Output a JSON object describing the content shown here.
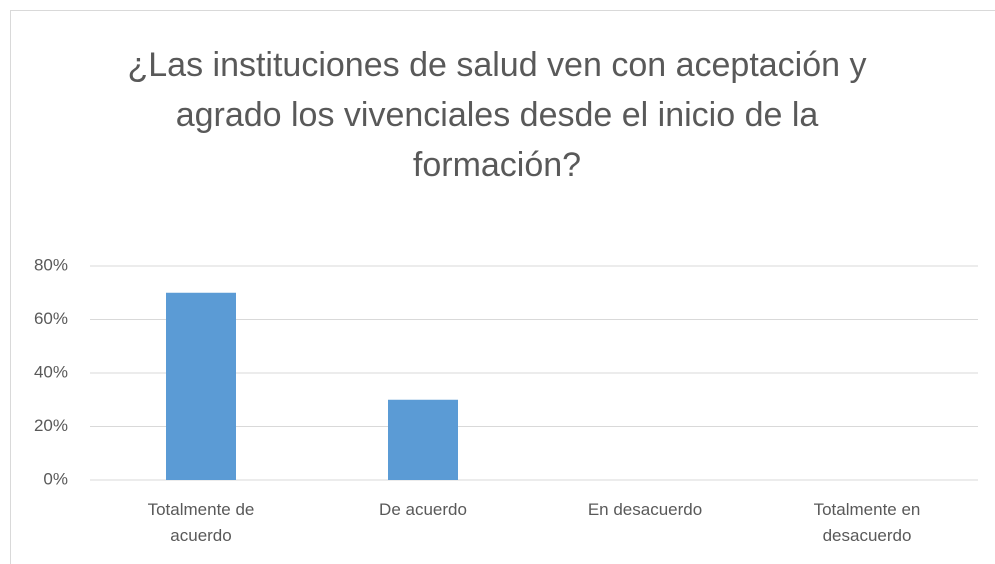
{
  "chart_data": {
    "type": "bar",
    "title": "¿Las instituciones de salud ven con aceptación y agrado los vivenciales desde el inicio de la formación?",
    "categories": [
      "Totalmente de acuerdo",
      "De acuerdo",
      "En desacuerdo",
      "Totalmente en desacuerdo"
    ],
    "values": [
      70,
      30,
      0,
      0
    ],
    "color": "#5b9bd5",
    "ylim": [
      0,
      80
    ],
    "yticks": [
      {
        "value": 0,
        "label": "0%"
      },
      {
        "value": 20,
        "label": "20%"
      },
      {
        "value": 40,
        "label": "40%"
      },
      {
        "value": 60,
        "label": "60%"
      },
      {
        "value": 80,
        "label": "80%"
      }
    ],
    "grid": true
  }
}
